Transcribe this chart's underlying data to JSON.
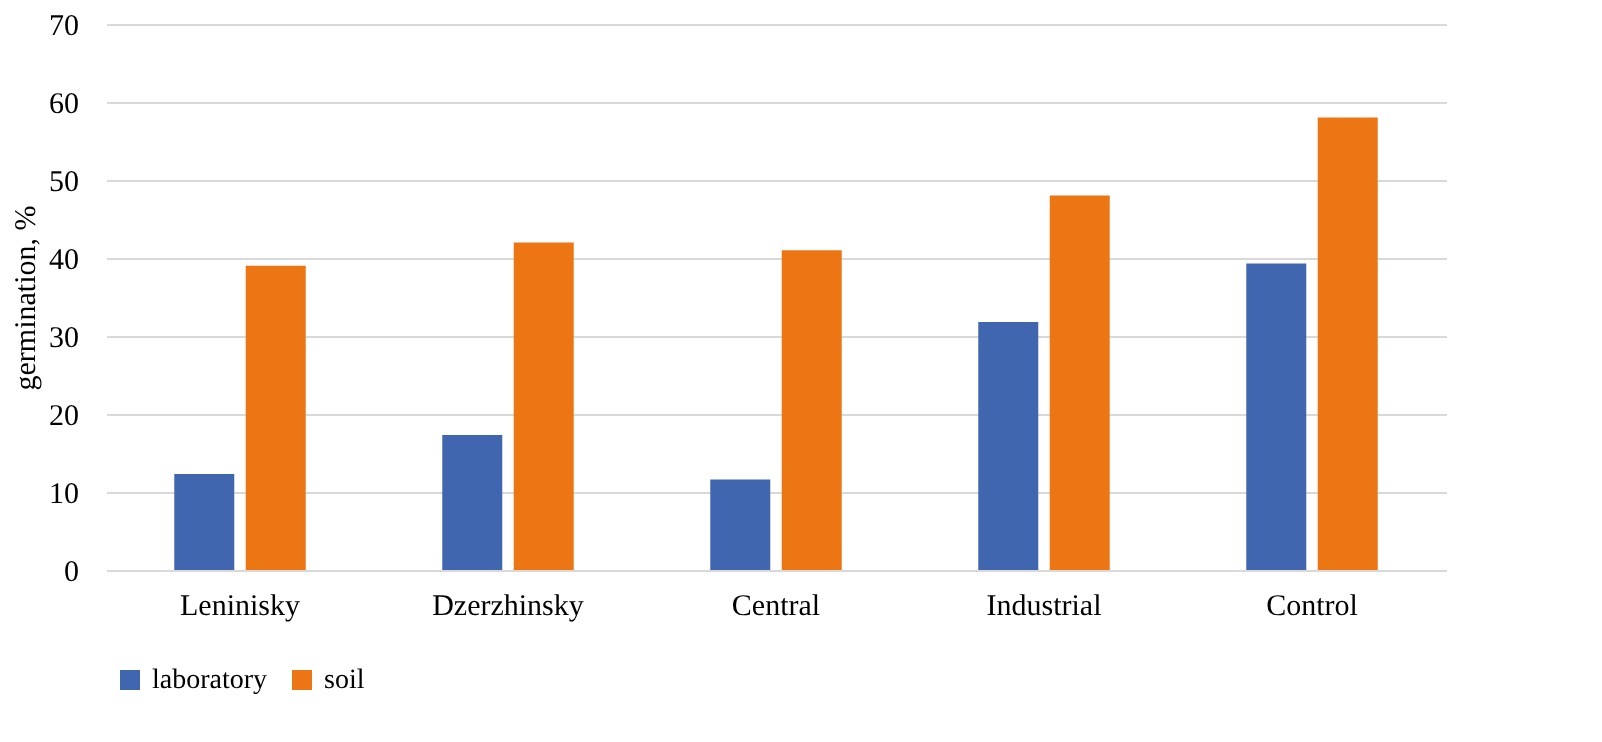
{
  "chart_data": {
    "type": "bar",
    "ylabel": "germination, %",
    "categories": [
      "Leninisky",
      "Dzerzhinsky",
      "Central",
      "Industrial",
      "Control"
    ],
    "series": [
      {
        "name": "laboratory",
        "color": "#4066b0",
        "values": [
          12.3,
          17.3,
          11.6,
          31.8,
          39.3
        ]
      },
      {
        "name": "soil",
        "color": "#ec7614",
        "values": [
          39,
          42,
          41,
          48,
          58
        ]
      }
    ],
    "ylim": [
      0,
      70
    ],
    "yticks": [
      0,
      10,
      20,
      30,
      40,
      50,
      60,
      70
    ],
    "grid": "y",
    "legend": "bottom"
  }
}
